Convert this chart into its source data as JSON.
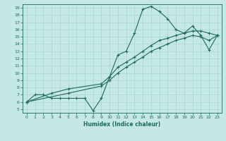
{
  "xlabel": "Humidex (Indice chaleur)",
  "bg_color": "#c5e8e5",
  "line_color": "#1a6b5a",
  "grid_color": "#a8d4d0",
  "xlim": [
    -0.5,
    23.5
  ],
  "ylim": [
    4.5,
    19.5
  ],
  "xticks": [
    0,
    1,
    2,
    3,
    4,
    5,
    6,
    7,
    8,
    9,
    10,
    11,
    12,
    13,
    14,
    15,
    16,
    17,
    18,
    19,
    20,
    21,
    22,
    23
  ],
  "yticks": [
    5,
    6,
    7,
    8,
    9,
    10,
    11,
    12,
    13,
    14,
    15,
    16,
    17,
    18,
    19
  ],
  "series1": [
    [
      0,
      6
    ],
    [
      1,
      7
    ],
    [
      2,
      7
    ],
    [
      3,
      6.5
    ],
    [
      4,
      6.5
    ],
    [
      5,
      6.5
    ],
    [
      6,
      6.5
    ],
    [
      7,
      6.5
    ],
    [
      8,
      4.8
    ],
    [
      9,
      6.5
    ],
    [
      10,
      9.5
    ],
    [
      11,
      12.5
    ],
    [
      12,
      13
    ],
    [
      13,
      15.5
    ],
    [
      14,
      18.8
    ],
    [
      15,
      19.2
    ],
    [
      16,
      18.5
    ],
    [
      17,
      17.5
    ],
    [
      18,
      16.0
    ],
    [
      19,
      15.5
    ],
    [
      20,
      16.5
    ],
    [
      21,
      15.2
    ],
    [
      22,
      13.2
    ],
    [
      23,
      15.2
    ]
  ],
  "series2": [
    [
      0,
      6
    ],
    [
      3,
      7.2
    ],
    [
      5,
      7.8
    ],
    [
      9,
      8.5
    ],
    [
      10,
      9.5
    ],
    [
      11,
      10.8
    ],
    [
      12,
      11.5
    ],
    [
      13,
      12.2
    ],
    [
      14,
      13.0
    ],
    [
      15,
      13.8
    ],
    [
      16,
      14.5
    ],
    [
      17,
      14.8
    ],
    [
      18,
      15.2
    ],
    [
      19,
      15.5
    ],
    [
      20,
      15.8
    ],
    [
      21,
      15.8
    ],
    [
      22,
      15.5
    ],
    [
      23,
      15.2
    ]
  ],
  "series3": [
    [
      0,
      6
    ],
    [
      5,
      7.2
    ],
    [
      9,
      8.2
    ],
    [
      10,
      9.0
    ],
    [
      11,
      10.0
    ],
    [
      12,
      10.8
    ],
    [
      13,
      11.5
    ],
    [
      14,
      12.2
    ],
    [
      15,
      13.0
    ],
    [
      16,
      13.5
    ],
    [
      17,
      14.0
    ],
    [
      18,
      14.5
    ],
    [
      19,
      14.8
    ],
    [
      20,
      15.2
    ],
    [
      21,
      15.0
    ],
    [
      22,
      14.5
    ],
    [
      23,
      15.2
    ]
  ]
}
